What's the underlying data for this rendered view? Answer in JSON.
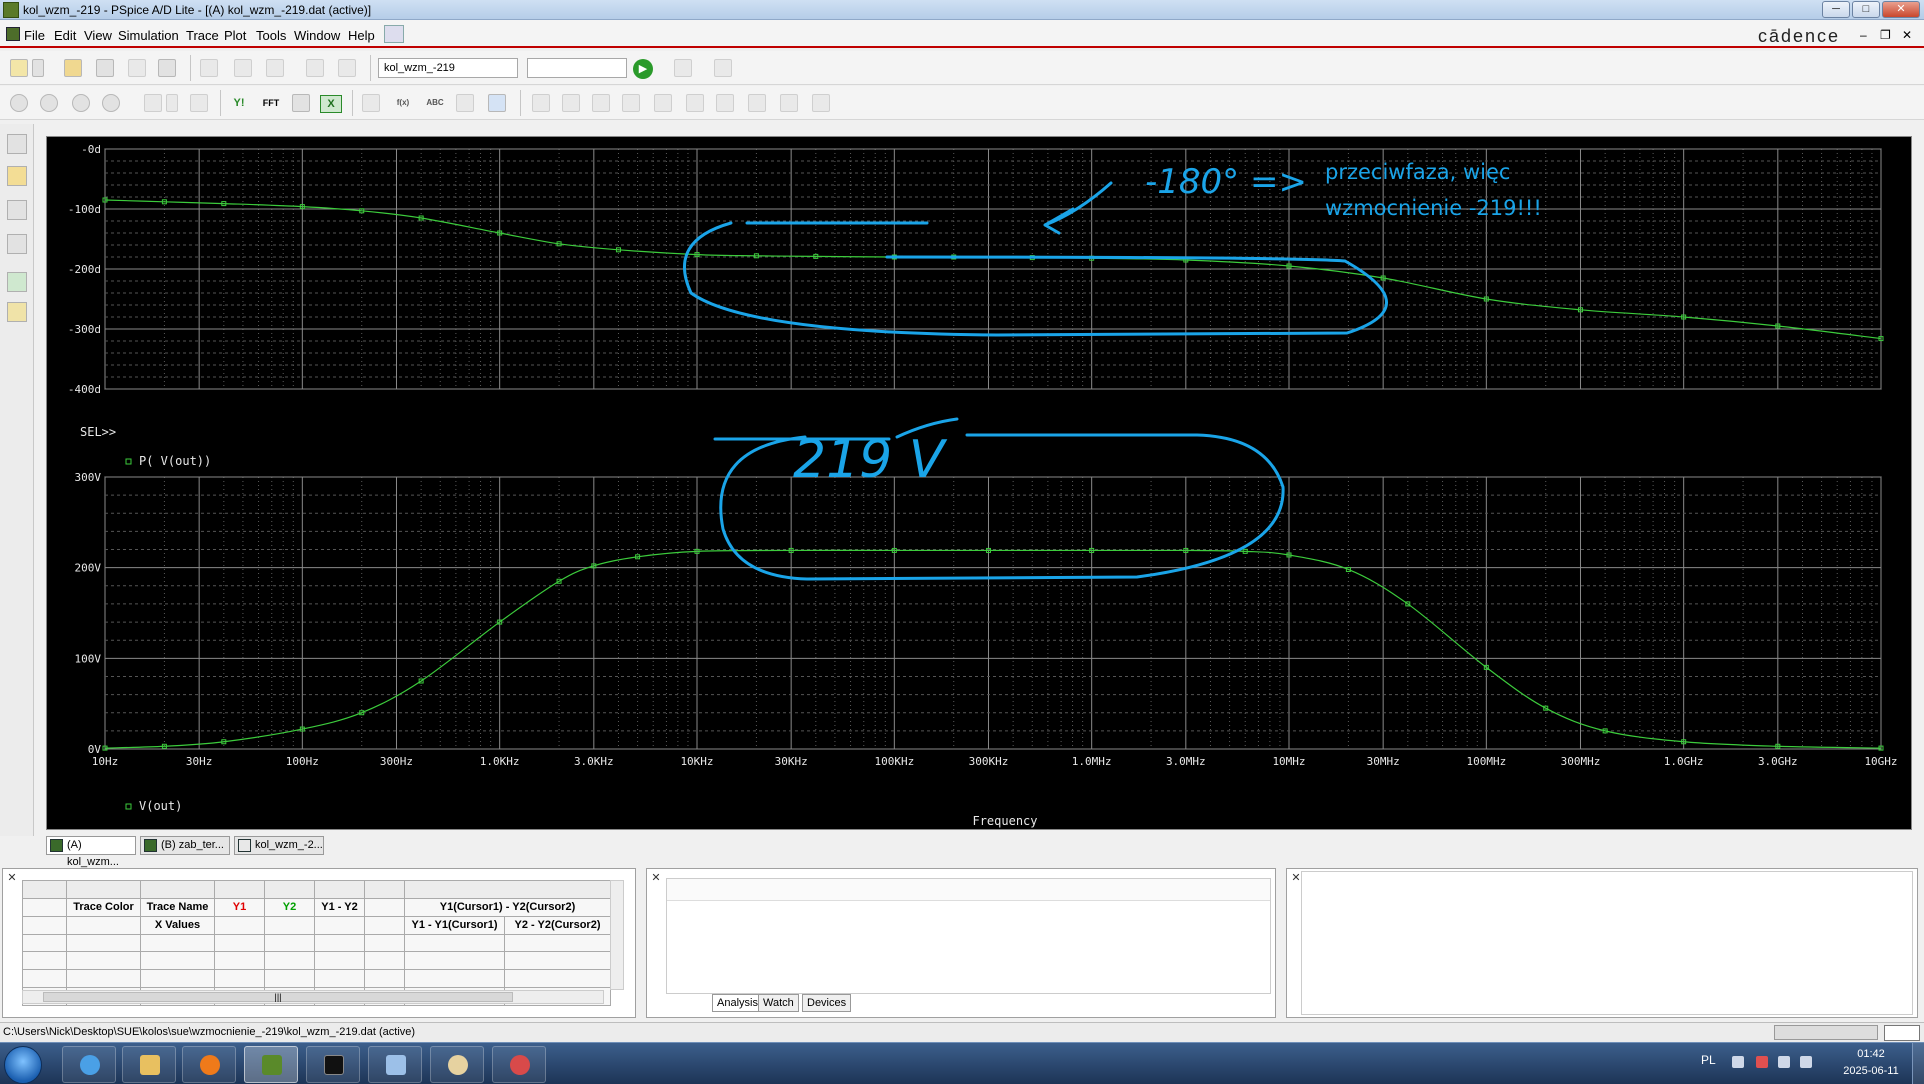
{
  "window": {
    "title": "kol_wzm_-219 - PSpice A/D Lite - [(A) kol_wzm_-219.dat (active)]",
    "controls": {
      "minimize": "─",
      "maximize": "□",
      "close": "✕"
    }
  },
  "menu": {
    "items": [
      "File",
      "Edit",
      "View",
      "Simulation",
      "Trace",
      "Plot",
      "Tools",
      "Window",
      "Help"
    ],
    "brand": "cādence",
    "mdi_controls": {
      "minimize": "–",
      "restore": "❐",
      "close": "✕"
    }
  },
  "toolbar": {
    "profile_value": "kol_wzm_-219",
    "secondary_value": "",
    "run_glyph": "▶",
    "y1_label": "Y!",
    "fft_label": "FFT",
    "x_label": "X",
    "fxl_label": "f(x)",
    "abc_label": "ABC"
  },
  "plot": {
    "frequency_ticks": [
      "10Hz",
      "30Hz",
      "100Hz",
      "300Hz",
      "1.0KHz",
      "3.0KHz",
      "10KHz",
      "30KHz",
      "100KHz",
      "300KHz",
      "1.0MHz",
      "3.0MHz",
      "10MHz",
      "30MHz",
      "100MHz",
      "300MHz",
      "1.0GHz",
      "3.0GHz",
      "10GHz"
    ],
    "x_axis_label": "Frequency",
    "phase": {
      "y_ticks": [
        "-0d",
        "-100d",
        "-200d",
        "-300d",
        "-400d"
      ],
      "ylim": [
        -400,
        0
      ],
      "sel_marker": "SEL>>",
      "legend": "P( V(out))",
      "trace_color": "#3ccb3c"
    },
    "magnitude": {
      "y_ticks": [
        "300V",
        "200V",
        "100V",
        "0V"
      ],
      "ylim": [
        0,
        300
      ],
      "legend": "V(out)",
      "trace_color": "#3ccb3c"
    },
    "annotations": {
      "phase_text_1": "przeciwfaza, więc",
      "phase_text_2": "wzmocnienie -219!!!",
      "handwritten_phase": "-180° =>",
      "handwritten_gain": "219 V",
      "ink_color": "#1aa4e8"
    }
  },
  "chart_data": [
    {
      "type": "line",
      "xscale": "log",
      "xlim_hz": [
        10,
        10000000000
      ],
      "ylim": [
        -400,
        0
      ],
      "ylabel_ticks": [
        "-0d",
        "-100d",
        "-200d",
        "-300d",
        "-400d"
      ],
      "xlabel": "Frequency",
      "series": [
        {
          "name": "P( V(out))",
          "x_hz": [
            10,
            20,
            40,
            100,
            200,
            400,
            1000,
            2000,
            4000,
            10000,
            20000,
            40000,
            100000,
            200000,
            500000,
            1000000,
            3000000,
            10000000,
            30000000,
            100000000,
            300000000,
            1000000000,
            3000000000,
            10000000000
          ],
          "y_deg": [
            -85,
            -88,
            -91,
            -96,
            -103,
            -115,
            -140,
            -158,
            -168,
            -176,
            -178,
            -179,
            -180,
            -180,
            -181,
            -182,
            -185,
            -195,
            -215,
            -250,
            -268,
            -280,
            -295,
            -316
          ]
        }
      ]
    },
    {
      "type": "line",
      "xscale": "log",
      "xlim_hz": [
        10,
        10000000000
      ],
      "ylim": [
        0,
        300
      ],
      "ylabel_ticks": [
        "300V",
        "200V",
        "100V",
        "0V"
      ],
      "xlabel": "Frequency",
      "series": [
        {
          "name": "V(out)",
          "x_hz": [
            10,
            20,
            40,
            100,
            200,
            400,
            1000,
            2000,
            3000,
            5000,
            10000,
            30000,
            100000,
            300000,
            1000000,
            3000000,
            6000000,
            10000000,
            20000000,
            40000000,
            100000000,
            200000000,
            400000000,
            1000000000,
            3000000000,
            10000000000
          ],
          "y_v": [
            1,
            3,
            8,
            22,
            40,
            75,
            140,
            185,
            202,
            212,
            218,
            219,
            219,
            219,
            219,
            219,
            218,
            214,
            198,
            160,
            90,
            45,
            20,
            8,
            3,
            1
          ]
        }
      ]
    }
  ],
  "doc_tabs": [
    "(A) kol_wzm...",
    "(B) zab_ter...",
    "kol_wzm_-2..."
  ],
  "probe_table": {
    "header_row1": [
      "Trace Color",
      "Trace Name",
      "Y1",
      "Y2",
      "Y1 - Y2",
      "",
      "Y1(Cursor1) - Y2(Cursor2)"
    ],
    "header_row2": [
      "",
      "X Values",
      "",
      "",
      "",
      "",
      "Y1 - Y1(Cursor1)",
      "Y2 - Y2(Cursor2)"
    ],
    "scroll_glyph": "|||"
  },
  "output_tabs": [
    "Analysis",
    "Watch",
    "Devices"
  ],
  "status": {
    "path": "C:\\Users\\Nick\\Desktop\\SUE\\kolos\\sue\\wzmocnienie_-219\\kol_wzm_-219.dat (active)"
  },
  "taskbar": {
    "language": "PL",
    "time": "01:42",
    "date": "2025-06-11"
  }
}
